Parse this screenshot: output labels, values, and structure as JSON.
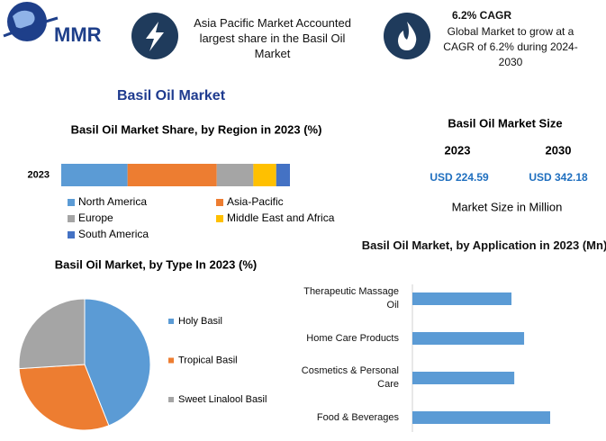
{
  "header": {
    "logo_text": "MMR",
    "highlight": "Asia Pacific Market Accounted largest share in the Basil Oil Market",
    "cagr_title": "6.2% CAGR",
    "cagr_text": "Global Market to grow at a CAGR of 6.2% during 2024-2030"
  },
  "title": "Basil Oil Market",
  "market_size": {
    "title": "Basil Oil Market Size",
    "years": [
      "2023",
      "2030"
    ],
    "values": [
      "USD 224.59",
      "USD 342.18"
    ],
    "caption": "Market Size in Million"
  },
  "chart_data": [
    {
      "type": "stacked_bar",
      "title": "Basil Oil Market Share, by Region in 2023 (%)",
      "categories": [
        "2023"
      ],
      "series": [
        {
          "name": "North America",
          "color": "#5b9bd5",
          "values": [
            29
          ]
        },
        {
          "name": "Asia-Pacific",
          "color": "#ed7d31",
          "values": [
            39
          ]
        },
        {
          "name": "Europe",
          "color": "#a5a5a5",
          "values": [
            16
          ]
        },
        {
          "name": "Middle East and Africa",
          "color": "#ffc000",
          "values": [
            10
          ]
        },
        {
          "name": "South America",
          "color": "#4472c4",
          "values": [
            6
          ]
        }
      ]
    },
    {
      "type": "pie",
      "title": "Basil Oil Market, by Type In 2023 (%)",
      "categories": [
        "Holy Basil",
        "Tropical Basil",
        "Sweet Linalool Basil"
      ],
      "values": [
        44,
        30,
        26
      ],
      "colors": [
        "#5b9bd5",
        "#ed7d31",
        "#a5a5a5"
      ]
    },
    {
      "type": "hbar",
      "title": "Basil Oil Market, by Application in 2023 (Mn)",
      "categories": [
        "Therapeutic Massage Oil",
        "Home Care Products",
        "Cosmetics & Personal Care",
        "Food & Beverages"
      ],
      "values": [
        49.4,
        55.7,
        50.8,
        68.7
      ],
      "color": "#5b9bd5"
    }
  ]
}
